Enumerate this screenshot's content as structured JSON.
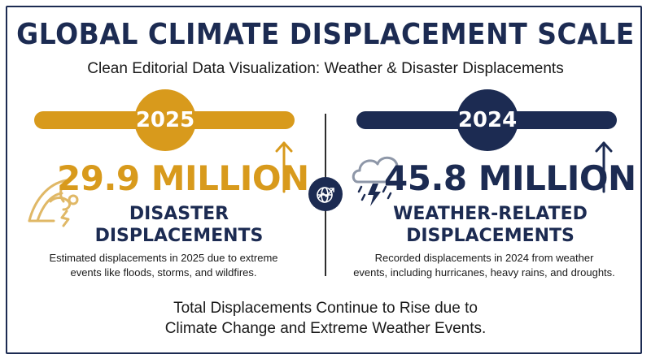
{
  "header": {
    "title": "GLOBAL CLIMATE DISPLACEMENT SCALE",
    "subtitle": "Clean Editorial Data Visualization: Weather & Disaster Displacements"
  },
  "left_panel": {
    "year": "2025",
    "value": "29.9 MILLION",
    "category_line1": "DISASTER",
    "category_line2": "DISPLACEMENTS",
    "description_line1": "Estimated displacements in 2025 due to extreme",
    "description_line2": "events like floods, storms, and wildfires.",
    "icon": "disaster-wave-icon",
    "trend_icon": "up-arrow-icon",
    "color": "#d89a1c"
  },
  "right_panel": {
    "year": "2024",
    "value": "45.8 MILLION",
    "category_line1": "WEATHER-RELATED",
    "category_line2": "DISPLACEMENTS",
    "description_line1": "Recorded displacements in 2024 from weather",
    "description_line2": "events, including hurricanes, heavy rains, and droughts.",
    "icon": "storm-cloud-icon",
    "trend_icon": "up-arrow-icon",
    "color": "#1c2b52"
  },
  "center_icon": "globe-trend-icon",
  "footer": {
    "line1": "Total Displacements Continue to Rise due to",
    "line2": "Climate Change and Extreme Weather Events."
  }
}
